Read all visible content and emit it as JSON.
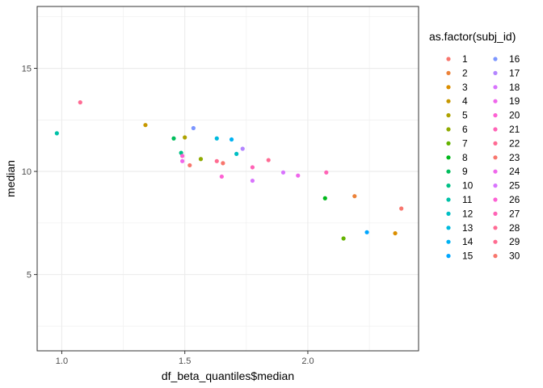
{
  "chart_data": {
    "type": "scatter",
    "xlabel": "df_beta_quantiles$median",
    "ylabel": "median",
    "xlim": [
      0.9,
      2.45
    ],
    "ylim": [
      1.3,
      18.0
    ],
    "x_ticks": [
      1.0,
      1.5,
      2.0
    ],
    "x_tick_labels": [
      "1.0",
      "1.5",
      "2.0"
    ],
    "y_ticks": [
      5,
      10,
      15
    ],
    "y_tick_labels": [
      "5",
      "10",
      "15"
    ],
    "grid": true,
    "legend": {
      "title": "as.factor(subj_id)",
      "placement": "right",
      "columns": 2
    },
    "series": [
      {
        "name": "1",
        "color": "#F8766D",
        "x": 1.655,
        "y": 10.4
      },
      {
        "name": "2",
        "color": "#EC8239",
        "x": 2.19,
        "y": 8.8
      },
      {
        "name": "3",
        "color": "#DB8E00",
        "x": 2.355,
        "y": 7.0
      },
      {
        "name": "4",
        "color": "#C79800",
        "x": 1.34,
        "y": 12.25
      },
      {
        "name": "5",
        "color": "#AEA200",
        "x": 1.5,
        "y": 11.65
      },
      {
        "name": "6",
        "color": "#8FAA00",
        "x": 1.565,
        "y": 10.6
      },
      {
        "name": "7",
        "color": "#64B200",
        "x": 2.145,
        "y": 6.75
      },
      {
        "name": "8",
        "color": "#00B81B",
        "x": 2.07,
        "y": 8.7
      },
      {
        "name": "9",
        "color": "#00BD5C",
        "x": 1.455,
        "y": 11.6
      },
      {
        "name": "10",
        "color": "#00C085",
        "x": 1.485,
        "y": 10.9
      },
      {
        "name": "11",
        "color": "#00C1A7",
        "x": 0.98,
        "y": 11.85
      },
      {
        "name": "12",
        "color": "#00BFC4",
        "x": 1.71,
        "y": 10.85
      },
      {
        "name": "13",
        "color": "#00BADE",
        "x": 1.63,
        "y": 11.6
      },
      {
        "name": "14",
        "color": "#00B2F3",
        "x": 1.69,
        "y": 11.55
      },
      {
        "name": "15",
        "color": "#00A6FF",
        "x": 2.24,
        "y": 7.05
      },
      {
        "name": "16",
        "color": "#7C96FF",
        "x": 1.535,
        "y": 12.1
      },
      {
        "name": "17",
        "color": "#B385FF",
        "x": 1.735,
        "y": 11.1
      },
      {
        "name": "18",
        "color": "#D874FD",
        "x": 1.9,
        "y": 9.95
      },
      {
        "name": "19",
        "color": "#EF67EB",
        "x": 1.96,
        "y": 9.8
      },
      {
        "name": "20",
        "color": "#FD61D3",
        "x": 1.65,
        "y": 9.75
      },
      {
        "name": "21",
        "color": "#FF63B6",
        "x": 2.075,
        "y": 9.95
      },
      {
        "name": "22",
        "color": "#FF6B94",
        "x": 1.075,
        "y": 13.35
      },
      {
        "name": "23",
        "color": "#F8766D",
        "x": 2.38,
        "y": 8.2
      },
      {
        "name": "24",
        "color": "#EF67EB",
        "x": 1.49,
        "y": 10.5
      },
      {
        "name": "25",
        "color": "#D874FD",
        "x": 1.775,
        "y": 9.55
      },
      {
        "name": "26",
        "color": "#FD61D3",
        "x": 1.49,
        "y": 10.75
      },
      {
        "name": "27",
        "color": "#FF63B6",
        "x": 1.775,
        "y": 10.2
      },
      {
        "name": "28",
        "color": "#FF6B94",
        "x": 1.84,
        "y": 10.55
      },
      {
        "name": "29",
        "color": "#FF6C91",
        "x": 1.63,
        "y": 10.5
      },
      {
        "name": "30",
        "color": "#F8766D",
        "x": 1.52,
        "y": 10.3
      }
    ]
  }
}
